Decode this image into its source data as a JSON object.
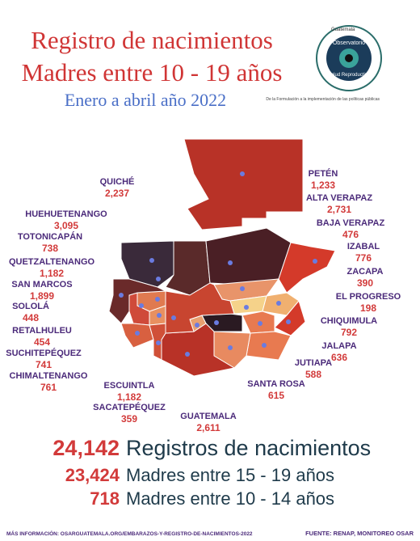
{
  "header": {
    "title_line1": "Registro de nacimientos",
    "title_line2": "Madres entre 10 - 19 años",
    "subtitle": "Enero a abril año 2022"
  },
  "logo": {
    "top": "Guatemala",
    "name_line1": "Observatorio",
    "name_line2": "Salud Reproductiva",
    "tagline": "De la Formulación a la implementación de las políticas públicas"
  },
  "departments": [
    {
      "name": "PETÉN",
      "value": "1,233"
    },
    {
      "name": "QUICHÉ",
      "value": "2,237"
    },
    {
      "name": "ALTA VERAPAZ",
      "value": "2,731"
    },
    {
      "name": "HUEHUETENANGO",
      "value": "3,095"
    },
    {
      "name": "BAJA VERAPAZ",
      "value": "476"
    },
    {
      "name": "TOTONICAPÁN",
      "value": "738"
    },
    {
      "name": "IZABAL",
      "value": "776"
    },
    {
      "name": "QUETZALTENANGO",
      "value": "1,182"
    },
    {
      "name": "ZACAPA",
      "value": "390"
    },
    {
      "name": "SAN MARCOS",
      "value": "1,899"
    },
    {
      "name": "EL PROGRESO",
      "value": "198"
    },
    {
      "name": "SOLOLÁ",
      "value": "448"
    },
    {
      "name": "CHIQUIMULA",
      "value": "792"
    },
    {
      "name": "RETALHULEU",
      "value": "454"
    },
    {
      "name": "JALAPA",
      "value": "636"
    },
    {
      "name": "SUCHITEPÉQUEZ",
      "value": "741"
    },
    {
      "name": "JUTIAPA",
      "value": "588"
    },
    {
      "name": "CHIMALTENANGO",
      "value": "761"
    },
    {
      "name": "ESCUINTLA",
      "value": "1,182"
    },
    {
      "name": "SANTA ROSA",
      "value": "615"
    },
    {
      "name": "SACATEPÉQUEZ",
      "value": "359"
    },
    {
      "name": "GUATEMALA",
      "value": "2,611"
    }
  ],
  "summary": [
    {
      "value": "24,142",
      "label": "Registros de nacimientos"
    },
    {
      "value": "23,424",
      "label": "Madres entre 15 - 19 años"
    },
    {
      "value": "718",
      "label": "Madres entre 10 - 14 años"
    }
  ],
  "footer": {
    "info": "MÁS INFORMACIÓN: OSARGUATEMALA.ORG/EMBARAZOS-Y-REGISTRO-DE-NACIMIENTOS-2022",
    "source": "FUENTE: RENAP, MONITOREO OSAR"
  }
}
